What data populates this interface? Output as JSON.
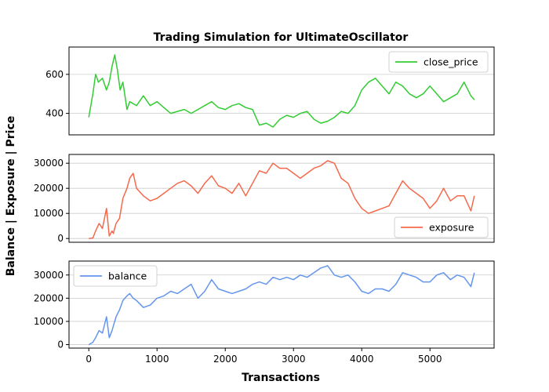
{
  "chart_data": {
    "type": "line",
    "title": "Trading Simulation for UltimateOscillator",
    "xlabel": "Transactions",
    "ylabel": "Balance | Exposure | Price",
    "x_ticks": [
      0,
      1000,
      2000,
      3000,
      4000,
      5000
    ],
    "xlim": [
      -290,
      5940
    ],
    "grid": "horizontal",
    "panels": [
      {
        "series_name": "close_price",
        "color": "#33cc33",
        "legend_position": "upper-right",
        "ylim": [
          290,
          740
        ],
        "y_ticks": [
          400,
          600
        ],
        "x": [
          0,
          60,
          100,
          140,
          200,
          260,
          300,
          340,
          380,
          420,
          460,
          500,
          560,
          600,
          700,
          800,
          900,
          1000,
          1100,
          1200,
          1300,
          1400,
          1500,
          1600,
          1700,
          1800,
          1900,
          2000,
          2100,
          2200,
          2300,
          2400,
          2500,
          2600,
          2700,
          2800,
          2900,
          3000,
          3100,
          3200,
          3300,
          3400,
          3500,
          3600,
          3700,
          3800,
          3900,
          4000,
          4100,
          4200,
          4300,
          4400,
          4500,
          4600,
          4700,
          4800,
          4900,
          5000,
          5100,
          5200,
          5300,
          5400,
          5500,
          5600,
          5650
        ],
        "values": [
          380,
          500,
          600,
          560,
          580,
          520,
          560,
          640,
          700,
          620,
          520,
          560,
          420,
          460,
          440,
          490,
          440,
          460,
          430,
          400,
          410,
          420,
          400,
          420,
          440,
          460,
          430,
          420,
          440,
          450,
          430,
          420,
          340,
          350,
          330,
          370,
          390,
          380,
          400,
          410,
          370,
          350,
          360,
          380,
          410,
          400,
          440,
          520,
          560,
          580,
          540,
          500,
          560,
          540,
          500,
          480,
          500,
          540,
          500,
          460,
          480,
          500,
          560,
          490,
          470
        ]
      },
      {
        "series_name": "exposure",
        "color": "#f4694b",
        "legend_position": "lower-right",
        "ylim": [
          -1500,
          33500
        ],
        "y_ticks": [
          0,
          10000,
          20000,
          30000
        ],
        "x": [
          0,
          60,
          100,
          150,
          200,
          260,
          300,
          340,
          360,
          400,
          450,
          500,
          560,
          600,
          650,
          700,
          800,
          900,
          1000,
          1100,
          1200,
          1300,
          1400,
          1500,
          1600,
          1700,
          1800,
          1900,
          2000,
          2100,
          2200,
          2300,
          2400,
          2500,
          2600,
          2700,
          2800,
          2900,
          3000,
          3100,
          3200,
          3300,
          3400,
          3500,
          3600,
          3700,
          3800,
          3900,
          4000,
          4100,
          4200,
          4300,
          4400,
          4500,
          4600,
          4700,
          4800,
          4900,
          5000,
          5100,
          5200,
          5300,
          5400,
          5500,
          5600,
          5650
        ],
        "values": [
          0,
          200,
          3000,
          6000,
          4000,
          12000,
          1000,
          3000,
          2000,
          6000,
          8000,
          16000,
          20000,
          24000,
          26000,
          20000,
          17000,
          15000,
          16000,
          18000,
          20000,
          22000,
          23000,
          21000,
          18000,
          22000,
          25000,
          21000,
          20000,
          18000,
          22000,
          17000,
          22000,
          27000,
          26000,
          30000,
          28000,
          28000,
          26000,
          24000,
          26000,
          28000,
          29000,
          31000,
          30000,
          24000,
          22000,
          16000,
          12000,
          10000,
          11000,
          12000,
          13000,
          18000,
          23000,
          20000,
          18000,
          16000,
          12000,
          15000,
          20000,
          15000,
          17000,
          17000,
          11000,
          17000
        ]
      },
      {
        "series_name": "balance",
        "color": "#6495ed",
        "legend_position": "upper-left",
        "ylim": [
          -1500,
          36000
        ],
        "y_ticks": [
          0,
          10000,
          20000,
          30000
        ],
        "x": [
          0,
          60,
          100,
          150,
          200,
          260,
          300,
          340,
          360,
          400,
          450,
          500,
          560,
          600,
          650,
          700,
          800,
          900,
          1000,
          1100,
          1200,
          1300,
          1400,
          1500,
          1600,
          1700,
          1800,
          1900,
          2000,
          2100,
          2200,
          2300,
          2400,
          2500,
          2600,
          2700,
          2800,
          2900,
          3000,
          3100,
          3200,
          3300,
          3400,
          3500,
          3600,
          3700,
          3800,
          3900,
          4000,
          4100,
          4200,
          4300,
          4400,
          4500,
          4600,
          4700,
          4800,
          4900,
          5000,
          5100,
          5200,
          5300,
          5400,
          5500,
          5600,
          5650
        ],
        "values": [
          0,
          1000,
          3000,
          6000,
          5000,
          12000,
          3000,
          6000,
          8000,
          12000,
          15000,
          19000,
          21000,
          22000,
          20000,
          19000,
          16000,
          17000,
          20000,
          21000,
          23000,
          22000,
          24000,
          26000,
          20000,
          23000,
          28000,
          24000,
          23000,
          22000,
          23000,
          24000,
          26000,
          27000,
          26000,
          29000,
          28000,
          29000,
          28000,
          30000,
          29000,
          31000,
          33000,
          34000,
          30000,
          29000,
          30000,
          27000,
          23000,
          22000,
          24000,
          24000,
          23000,
          26000,
          31000,
          30000,
          29000,
          27000,
          27000,
          30000,
          31000,
          28000,
          30000,
          29000,
          25000,
          31000
        ]
      }
    ]
  }
}
